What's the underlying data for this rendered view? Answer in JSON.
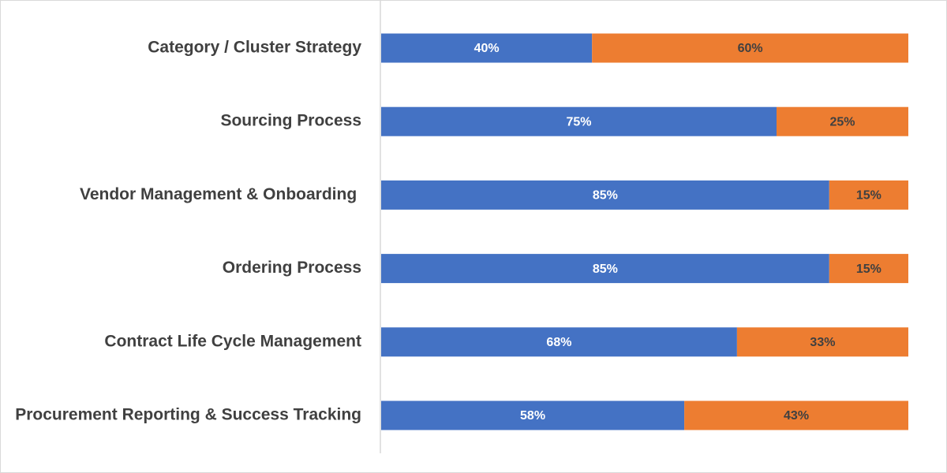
{
  "chart_data": {
    "type": "stacked-bar-horizontal",
    "categories": [
      "Category / Cluster Strategy",
      "Sourcing Process",
      "Vendor Management & Onboarding ",
      "Ordering Process",
      "Contract Life Cycle Management",
      "Procurement Reporting & Success Tracking"
    ],
    "series": [
      {
        "color": "#4472c4",
        "values": [
          40,
          75,
          85,
          85,
          67.5,
          57.5
        ],
        "value_labels": [
          "40%",
          "75%",
          "85%",
          "85%",
          "68%",
          "58%"
        ]
      },
      {
        "color": "#ed7d31",
        "values": [
          60,
          25,
          15,
          15,
          32.5,
          42.5
        ],
        "value_labels": [
          "60%",
          "25%",
          "15%",
          "15%",
          "33%",
          "43%"
        ]
      }
    ],
    "xlim": [
      0,
      100
    ]
  }
}
